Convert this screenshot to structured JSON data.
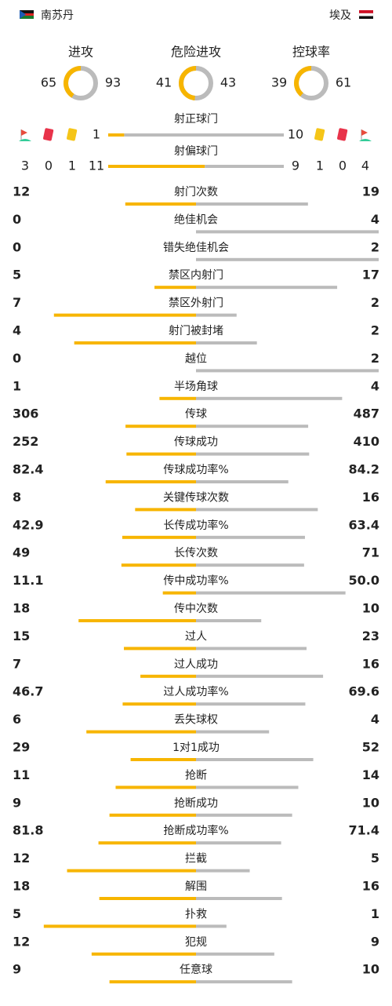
{
  "header": {
    "home": "南苏丹",
    "away": "埃及"
  },
  "summary": [
    {
      "label": "进攻",
      "home": 65,
      "away": 93
    },
    {
      "label": "危险进攻",
      "home": 41,
      "away": 43
    },
    {
      "label": "控球率",
      "home": 39,
      "away": 61
    }
  ],
  "shots": [
    {
      "label": "射正球门",
      "home": 1,
      "away": 10
    },
    {
      "label": "射偏球门",
      "home": 11,
      "away": 9
    }
  ],
  "discipline": {
    "home": {
      "corners": 3,
      "red": 0,
      "yellow": 1
    },
    "away": {
      "yellow": 1,
      "red": 0,
      "corners": 4
    }
  },
  "stats": [
    {
      "label": "射门次数",
      "home": 12,
      "away": 19
    },
    {
      "label": "绝佳机会",
      "home": 0,
      "away": 4
    },
    {
      "label": "错失绝佳机会",
      "home": 0,
      "away": 2
    },
    {
      "label": "禁区内射门",
      "home": 5,
      "away": 17
    },
    {
      "label": "禁区外射门",
      "home": 7,
      "away": 2
    },
    {
      "label": "射门被封堵",
      "home": 4,
      "away": 2
    },
    {
      "label": "越位",
      "home": 0,
      "away": 2
    },
    {
      "label": "半场角球",
      "home": 1,
      "away": 4
    },
    {
      "label": "传球",
      "home": 306,
      "away": 487
    },
    {
      "label": "传球成功",
      "home": 252,
      "away": 410
    },
    {
      "label": "传球成功率%",
      "home": 82.4,
      "away": 84.2
    },
    {
      "label": "关键传球次数",
      "home": 8,
      "away": 16
    },
    {
      "label": "长传成功率%",
      "home": 42.9,
      "away": 63.4
    },
    {
      "label": "长传次数",
      "home": 49,
      "away": 71
    },
    {
      "label": "传中成功率%",
      "home": 11.1,
      "away": {
        "value": 50,
        "label": "50.0"
      }
    },
    {
      "label": "传中次数",
      "home": 18,
      "away": 10
    },
    {
      "label": "过人",
      "home": 15,
      "away": 23
    },
    {
      "label": "过人成功",
      "home": 7,
      "away": 16
    },
    {
      "label": "过人成功率%",
      "home": 46.7,
      "away": 69.6
    },
    {
      "label": "丢失球权",
      "home": 6,
      "away": 4
    },
    {
      "label": "1对1成功",
      "home": 29,
      "away": 52
    },
    {
      "label": "抢断",
      "home": 11,
      "away": 14
    },
    {
      "label": "抢断成功",
      "home": 9,
      "away": 10
    },
    {
      "label": "抢断成功率%",
      "home": 81.8,
      "away": 71.4
    },
    {
      "label": "拦截",
      "home": 12,
      "away": 5
    },
    {
      "label": "解围",
      "home": 18,
      "away": 16
    },
    {
      "label": "扑救",
      "home": 5,
      "away": 1
    },
    {
      "label": "犯规",
      "home": 12,
      "away": 9
    },
    {
      "label": "任意球",
      "home": 9,
      "away": 10
    }
  ]
}
